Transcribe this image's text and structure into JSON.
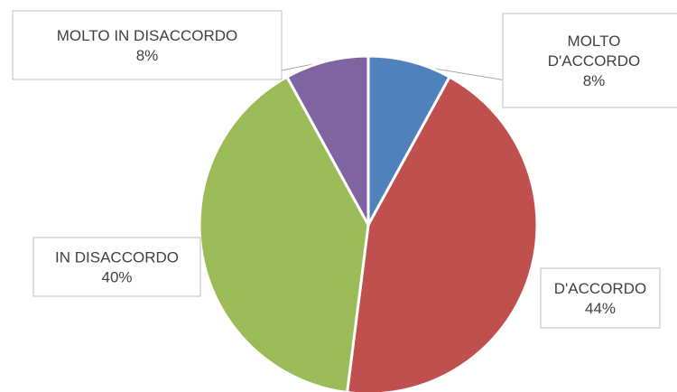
{
  "chart_data": {
    "type": "pie",
    "title": "",
    "slices": [
      {
        "label": "MOLTO D'ACCORDO",
        "label_lines": [
          "MOLTO",
          "D'ACCORDO"
        ],
        "value": 8,
        "display": "8%",
        "color": "#4f81bd"
      },
      {
        "label": "D'ACCORDO",
        "label_lines": [
          "D'ACCORDO"
        ],
        "value": 44,
        "display": "44%",
        "color": "#c0504d"
      },
      {
        "label": "IN DISACCORDO",
        "label_lines": [
          "IN DISACCORDO"
        ],
        "value": 40,
        "display": "40%",
        "color": "#9bbb59"
      },
      {
        "label": "MOLTO IN DISACCORDO",
        "label_lines": [
          "MOLTO IN DISACCORDO"
        ],
        "value": 8,
        "display": "8%",
        "color": "#8064a2"
      }
    ],
    "start_angle_deg": 0,
    "direction": "clockwise",
    "legend": "none",
    "slice_border_color": "#ffffff"
  }
}
